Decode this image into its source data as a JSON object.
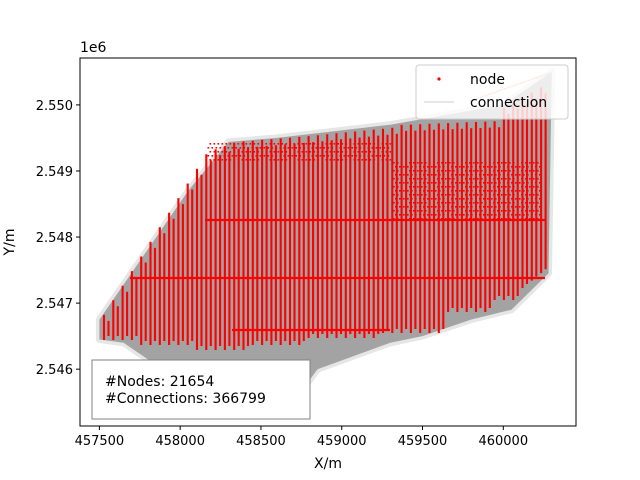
{
  "chart_data": {
    "type": "scatter",
    "title": "",
    "xlabel": "X/m",
    "ylabel": "Y/m",
    "y_offset_label": "1e6",
    "xlim": [
      457380,
      460450
    ],
    "ylim": [
      2545140,
      2550710
    ],
    "x_ticks": [
      457500,
      458000,
      458500,
      459000,
      459500,
      460000
    ],
    "x_tick_labels": [
      "457500",
      "458000",
      "458500",
      "459000",
      "459500",
      "460000"
    ],
    "y_ticks": [
      2546000,
      2547000,
      2548000,
      2549000,
      2550000
    ],
    "y_tick_labels": [
      "2.546",
      "2.547",
      "2.548",
      "2.549",
      "2.550"
    ],
    "grid": false,
    "legend_position": "top-right",
    "legend": [
      {
        "label": "node",
        "marker": "dot",
        "color": "#ff0000"
      },
      {
        "label": "connection",
        "marker": "line",
        "color": "#dddddd"
      }
    ],
    "annotation_lines": [
      "#Nodes: 21654",
      "#Connections: 366799"
    ],
    "outline": [
      [
        457500,
        2546750
      ],
      [
        458050,
        2548700
      ],
      [
        458300,
        2549440
      ],
      [
        458600,
        2549500
      ],
      [
        459300,
        2549700
      ],
      [
        460000,
        2550000
      ],
      [
        460300,
        2550500
      ],
      [
        460280,
        2547450
      ],
      [
        460050,
        2546900
      ],
      [
        459800,
        2546750
      ],
      [
        459500,
        2546500
      ],
      [
        459300,
        2546400
      ],
      [
        458850,
        2546000
      ],
      [
        458700,
        2545500
      ],
      [
        458250,
        2545400
      ],
      [
        457650,
        2546400
      ],
      [
        457500,
        2546450
      ]
    ],
    "series": [
      {
        "name": "node",
        "color": "#ff0000"
      },
      {
        "name": "connection",
        "color": "#999999"
      }
    ]
  }
}
